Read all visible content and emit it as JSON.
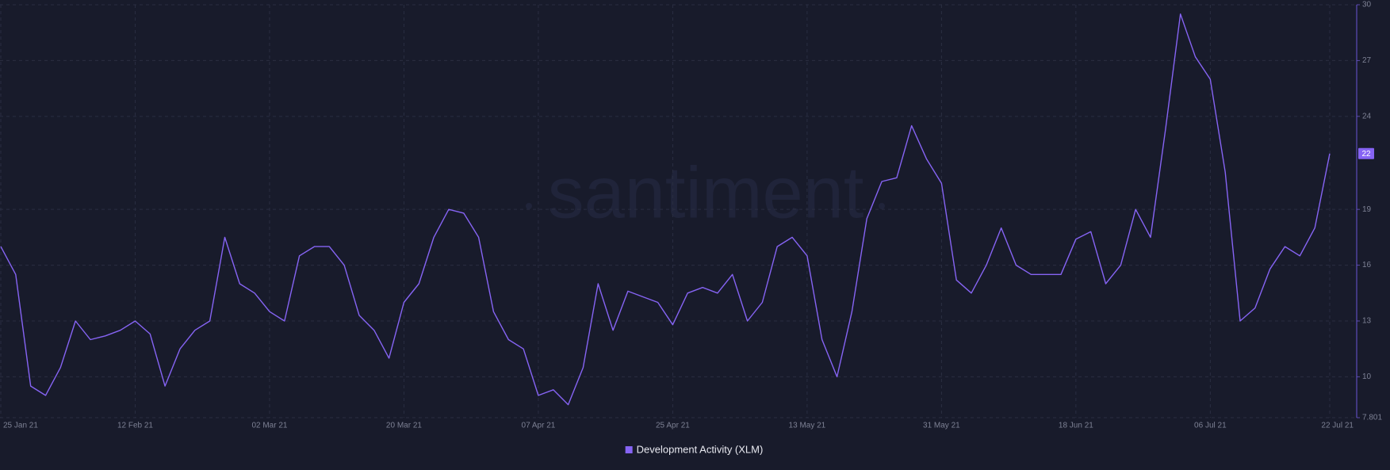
{
  "chart_data": {
    "type": "line",
    "watermark": "santiment",
    "x": [
      "2021-01-25",
      "2021-01-27",
      "2021-01-29",
      "2021-01-31",
      "2021-02-02",
      "2021-02-04",
      "2021-02-06",
      "2021-02-08",
      "2021-02-10",
      "2021-02-12",
      "2021-02-14",
      "2021-02-16",
      "2021-02-18",
      "2021-02-20",
      "2021-02-22",
      "2021-02-24",
      "2021-02-26",
      "2021-02-28",
      "2021-03-02",
      "2021-03-04",
      "2021-03-06",
      "2021-03-08",
      "2021-03-10",
      "2021-03-12",
      "2021-03-14",
      "2021-03-16",
      "2021-03-18",
      "2021-03-20",
      "2021-03-22",
      "2021-03-24",
      "2021-03-26",
      "2021-03-28",
      "2021-03-30",
      "2021-04-01",
      "2021-04-03",
      "2021-04-05",
      "2021-04-07",
      "2021-04-09",
      "2021-04-11",
      "2021-04-13",
      "2021-04-15",
      "2021-04-17",
      "2021-04-19",
      "2021-04-21",
      "2021-04-23",
      "2021-04-25",
      "2021-04-27",
      "2021-04-29",
      "2021-05-01",
      "2021-05-03",
      "2021-05-05",
      "2021-05-07",
      "2021-05-09",
      "2021-05-11",
      "2021-05-13",
      "2021-05-15",
      "2021-05-17",
      "2021-05-19",
      "2021-05-21",
      "2021-05-23",
      "2021-05-25",
      "2021-05-27",
      "2021-05-29",
      "2021-05-31",
      "2021-06-02",
      "2021-06-04",
      "2021-06-06",
      "2021-06-08",
      "2021-06-10",
      "2021-06-12",
      "2021-06-14",
      "2021-06-16",
      "2021-06-18",
      "2021-06-20",
      "2021-06-22",
      "2021-06-24",
      "2021-06-26",
      "2021-06-28",
      "2021-06-30",
      "2021-07-02",
      "2021-07-04",
      "2021-07-06",
      "2021-07-08",
      "2021-07-10",
      "2021-07-12",
      "2021-07-14",
      "2021-07-16",
      "2021-07-18",
      "2021-07-20",
      "2021-07-22"
    ],
    "series": [
      {
        "name": "Development Activity (XLM)",
        "color": "#8664f4",
        "values": [
          17,
          15.5,
          9.5,
          9,
          10.5,
          13,
          12,
          12.2,
          12.5,
          13,
          12.3,
          9.5,
          11.5,
          12.5,
          13,
          17.5,
          15,
          14.5,
          13.5,
          13,
          16.5,
          17,
          17,
          16,
          13.3,
          12.5,
          11,
          14,
          15,
          17.5,
          19,
          18.8,
          17.5,
          13.5,
          12,
          11.5,
          9,
          9.3,
          8.5,
          10.5,
          15,
          12.5,
          14.6,
          14.3,
          14,
          12.8,
          14.5,
          14.8,
          14.5,
          15.5,
          13,
          14,
          17,
          17.5,
          16.5,
          12,
          10,
          13.5,
          18.5,
          20.5,
          20.7,
          23.5,
          21.7,
          20.4,
          15.2,
          14.5,
          16,
          18,
          16,
          15.5,
          15.5,
          15.5,
          17.4,
          17.8,
          15,
          16,
          19,
          17.5,
          23.3,
          29.5,
          27.2,
          26,
          21,
          13,
          13.7,
          15.8,
          17,
          16.5,
          18,
          22
        ]
      }
    ],
    "xlim": [
      "2021-01-25",
      "2021-07-22"
    ],
    "xticks": [
      {
        "value": "2021-01-25",
        "label": "25 Jan 21"
      },
      {
        "value": "2021-02-12",
        "label": "12 Feb 21"
      },
      {
        "value": "2021-03-02",
        "label": "02 Mar 21"
      },
      {
        "value": "2021-03-20",
        "label": "20 Mar 21"
      },
      {
        "value": "2021-04-07",
        "label": "07 Apr 21"
      },
      {
        "value": "2021-04-25",
        "label": "25 Apr 21"
      },
      {
        "value": "2021-05-13",
        "label": "13 May 21"
      },
      {
        "value": "2021-05-31",
        "label": "31 May 21"
      },
      {
        "value": "2021-06-18",
        "label": "18 Jun 21"
      },
      {
        "value": "2021-07-06",
        "label": "06 Jul 21"
      },
      {
        "value": "2021-07-22",
        "label": "22 Jul 21"
      }
    ],
    "ylim": [
      7.801,
      30
    ],
    "yticks": [
      7.801,
      10,
      13,
      16,
      19,
      24,
      27,
      30
    ],
    "grid": true,
    "legend": "bottom"
  }
}
